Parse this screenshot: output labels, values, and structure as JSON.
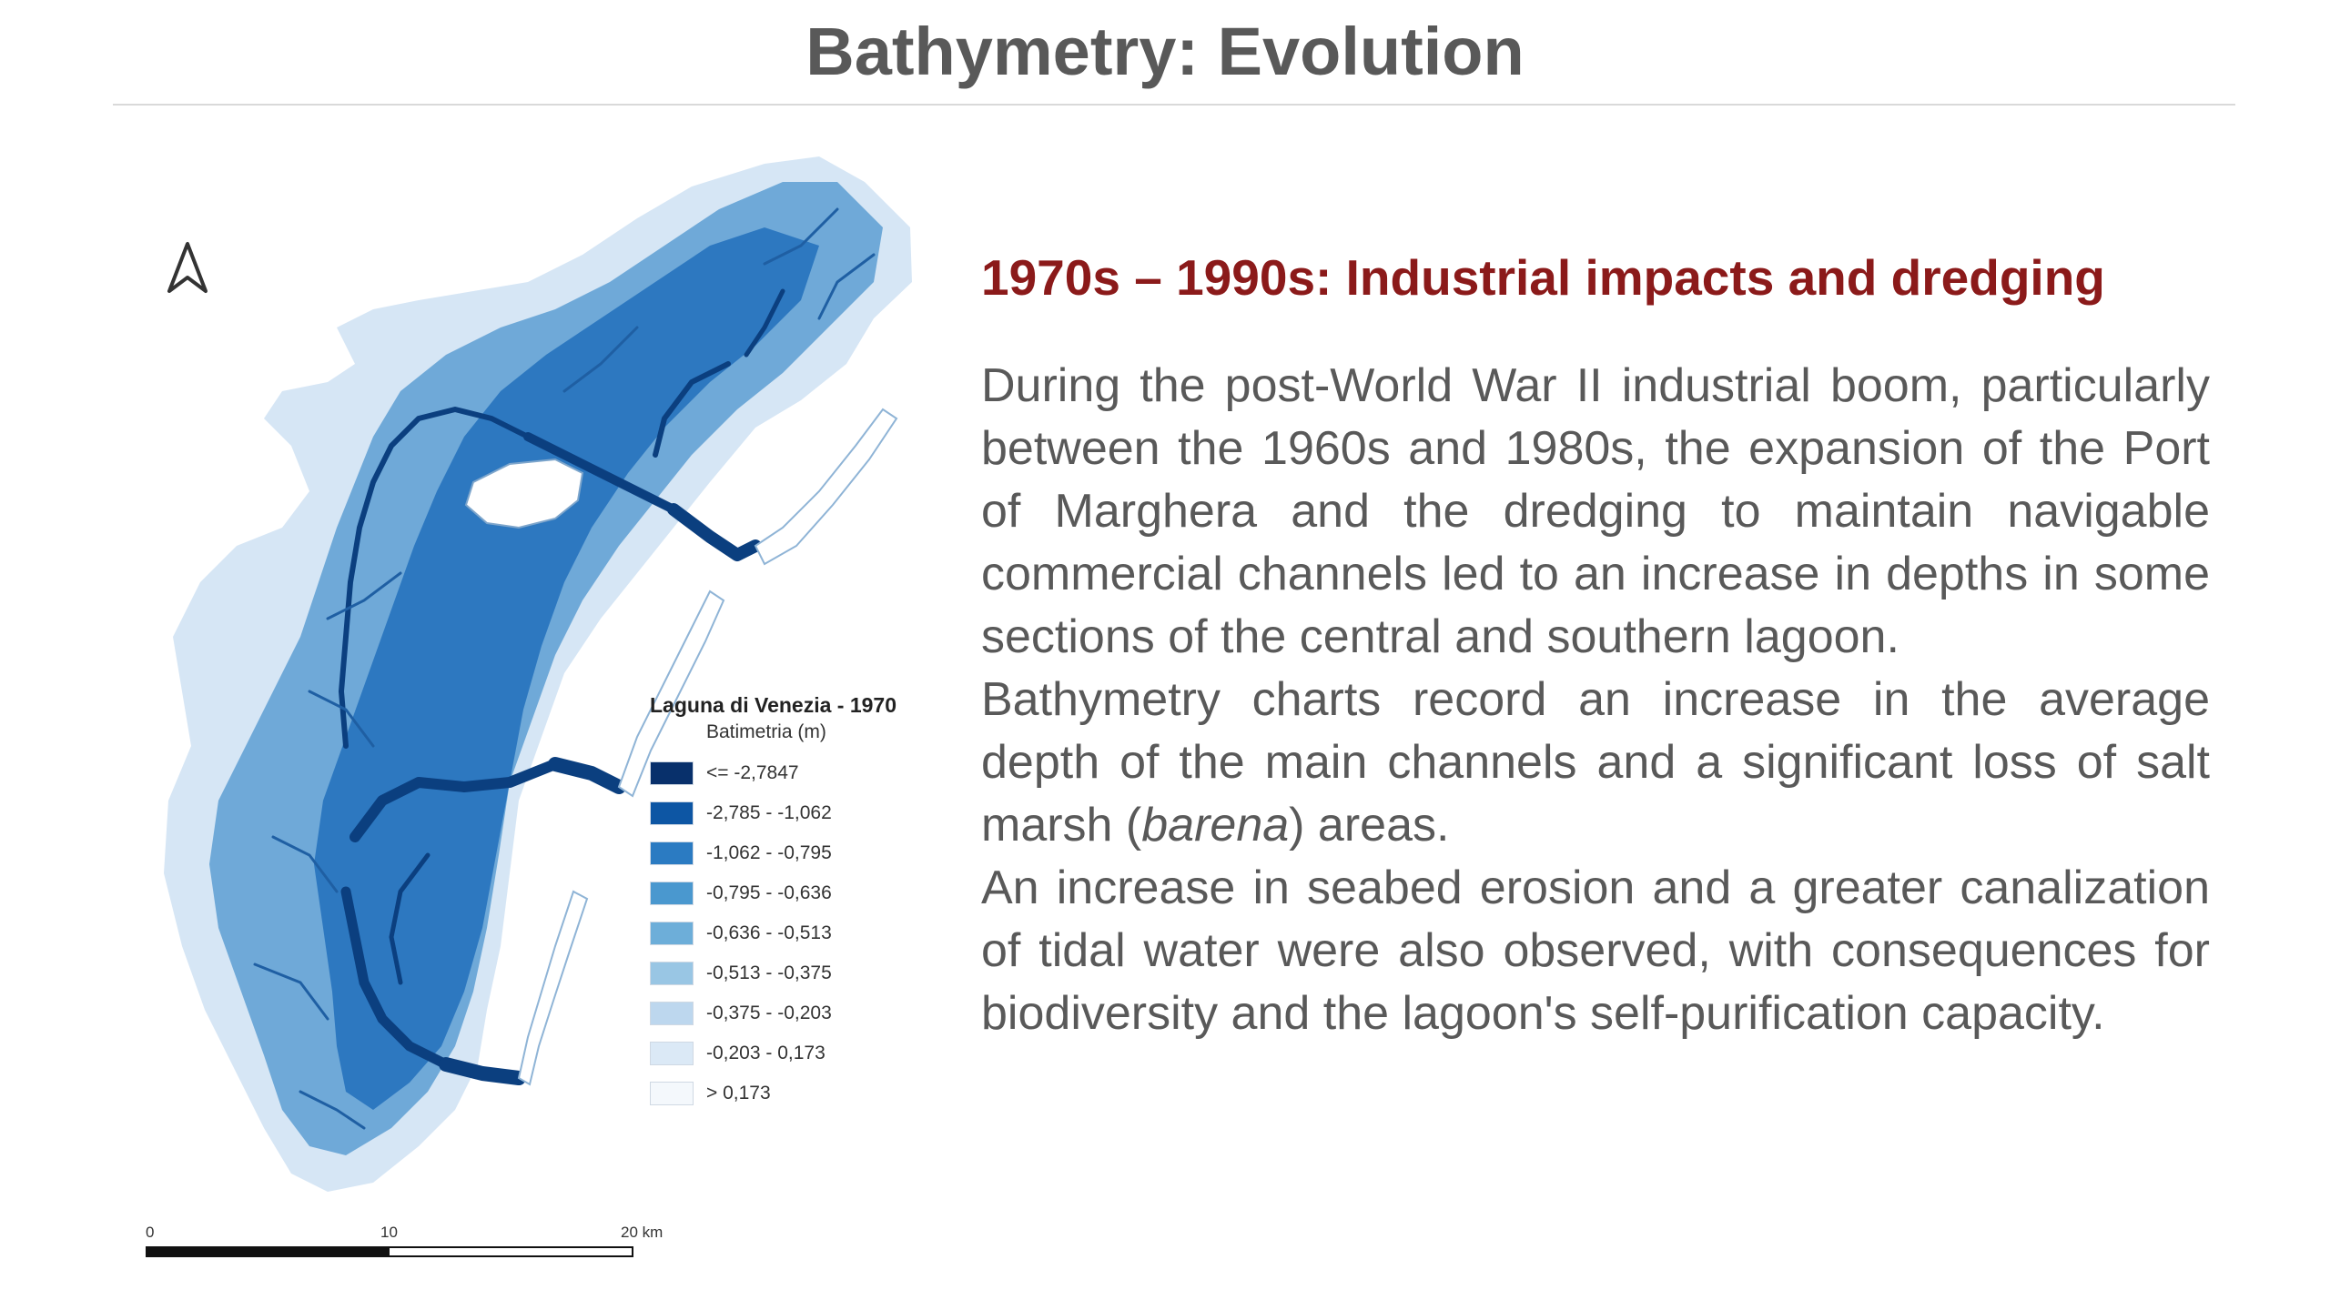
{
  "slide": {
    "title": "Bathymetry: Evolution"
  },
  "map": {
    "legend": {
      "title": "Laguna di Venezia - 1970",
      "subtitle": "Batimetria (m)",
      "classes": [
        {
          "label": "<= -2,7847",
          "color": "#08306b"
        },
        {
          "label": "-2,785 - -1,062",
          "color": "#0d56a4"
        },
        {
          "label": "-1,062 - -0,795",
          "color": "#2b7bc2"
        },
        {
          "label": "-0,795 - -0,636",
          "color": "#4a98cf"
        },
        {
          "label": "-0,636 - -0,513",
          "color": "#6daed9"
        },
        {
          "label": "-0,513 - -0,375",
          "color": "#99c6e4"
        },
        {
          "label": "-0,375 - -0,203",
          "color": "#bdd7ee"
        },
        {
          "label": "-0,203 - 0,173",
          "color": "#dbe9f6"
        },
        {
          "label": "> 0,173",
          "color": "#f4f8fc"
        }
      ]
    },
    "scale": {
      "label_0": "0",
      "label_10": "10",
      "label_20": "20 km"
    },
    "north_arrow_icon": "north-arrow-icon"
  },
  "content": {
    "heading": "1970s – 1990s: Industrial impacts and dredging",
    "paragraph_1": "During the post-World War II industrial boom, particularly between the 1960s and 1980s, the expansion of the Port of Marghera and the dredging to maintain navigable commercial channels led to an increase in depths in some sections of the central and southern lagoon.",
    "paragraph_2_before": "Bathymetry charts record an increase in the average depth of the main channels and a significant loss of salt marsh (",
    "paragraph_2_italic": "barena",
    "paragraph_2_after": ") areas.",
    "paragraph_3": "An increase in seabed erosion and a greater canalization of tidal water were also observed, with consequences for biodiversity and the lagoon's self-purification capacity."
  }
}
